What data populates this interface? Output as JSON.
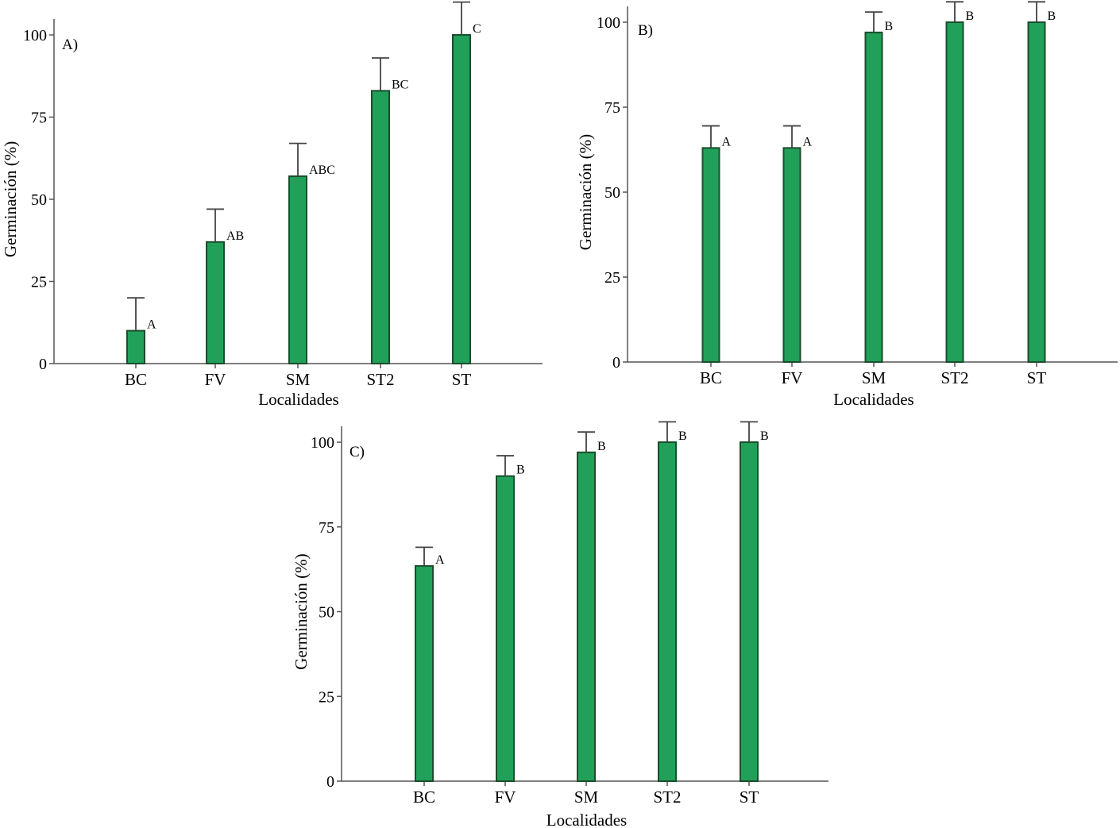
{
  "figure": {
    "bar_color": "#21a05a",
    "bar_edge_color": "#1b4d2c",
    "axis_color": "#555555"
  },
  "chart_data": [
    {
      "type": "bar",
      "panel": "A)",
      "categories": [
        "BC",
        "FV",
        "SM",
        "ST2",
        "ST"
      ],
      "values": [
        10,
        37,
        57,
        83,
        100
      ],
      "errors": [
        10,
        10,
        10,
        10,
        10
      ],
      "significance": [
        "A",
        "AB",
        "ABC",
        "BC",
        "C"
      ],
      "xlabel": "Localidades",
      "ylabel": "Germinación (%)",
      "ylim": [
        0,
        100
      ],
      "yticks": [
        0,
        25,
        50,
        75,
        100
      ]
    },
    {
      "type": "bar",
      "panel": "B)",
      "categories": [
        "BC",
        "FV",
        "SM",
        "ST2",
        "ST"
      ],
      "values": [
        63,
        63,
        97,
        100,
        100
      ],
      "errors": [
        6.5,
        6.5,
        6,
        6,
        6
      ],
      "significance": [
        "A",
        "A",
        "B",
        "B",
        "B"
      ],
      "xlabel": "Localidades",
      "ylabel": "Germinación (%)",
      "ylim": [
        0,
        100
      ],
      "yticks": [
        0,
        25,
        50,
        75,
        100
      ]
    },
    {
      "type": "bar",
      "panel": "C)",
      "categories": [
        "BC",
        "FV",
        "SM",
        "ST2",
        "ST"
      ],
      "values": [
        63.5,
        90,
        97,
        100,
        100
      ],
      "errors": [
        5.5,
        6,
        6,
        6,
        6
      ],
      "significance": [
        "A",
        "B",
        "B",
        "B",
        "B"
      ],
      "xlabel": "Localidades",
      "ylabel": "Germinación (%)",
      "ylim": [
        0,
        100
      ],
      "yticks": [
        0,
        25,
        50,
        75,
        100
      ]
    }
  ]
}
